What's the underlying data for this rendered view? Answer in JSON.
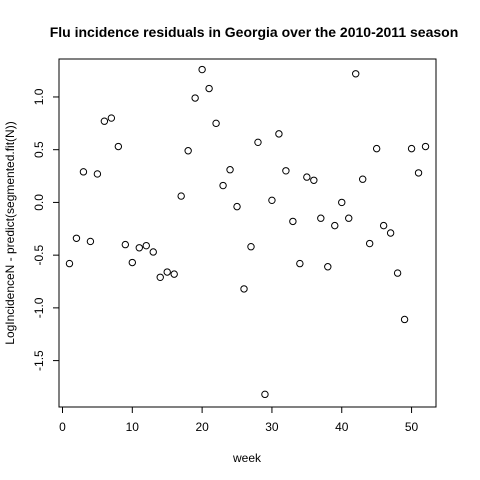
{
  "chart_data": {
    "type": "scatter",
    "title": "Flu incidence residuals in Georgia over the 2010-2011 season",
    "xlabel": "week",
    "ylabel": "LogIncidenceN - predict(segmented.fit(N))",
    "xlim": [
      -0.5,
      53.5
    ],
    "ylim": [
      -1.94,
      1.36
    ],
    "x_ticks": [
      0,
      10,
      20,
      30,
      40,
      50
    ],
    "y_ticks": [
      -1.5,
      -1.0,
      -0.5,
      0.0,
      0.5,
      1.0
    ],
    "x_tick_labels": [
      "0",
      "10",
      "20",
      "30",
      "40",
      "50"
    ],
    "y_tick_labels": [
      "-1.5",
      "-1.0",
      "-0.5",
      "0.0",
      "0.5",
      "1.0"
    ],
    "grid": false,
    "legend": "none",
    "marker": "open-circle",
    "x": [
      1,
      2,
      3,
      4,
      5,
      6,
      7,
      8,
      9,
      10,
      11,
      12,
      13,
      14,
      15,
      16,
      17,
      18,
      19,
      20,
      21,
      22,
      23,
      24,
      25,
      26,
      27,
      28,
      29,
      30,
      31,
      32,
      33,
      34,
      35,
      36,
      37,
      38,
      39,
      40,
      41,
      42,
      43,
      44,
      45,
      46,
      47,
      48,
      49,
      50,
      51,
      52
    ],
    "y": [
      -0.58,
      -0.34,
      0.29,
      -0.37,
      0.27,
      0.77,
      0.8,
      0.53,
      -0.4,
      -0.57,
      -0.43,
      -0.41,
      -0.47,
      -0.71,
      -0.66,
      -0.68,
      0.06,
      0.49,
      0.99,
      1.26,
      1.08,
      0.75,
      0.16,
      0.31,
      -0.04,
      -0.82,
      -0.42,
      0.57,
      -1.82,
      0.02,
      0.65,
      0.3,
      -0.18,
      -0.58,
      0.24,
      0.21,
      -0.15,
      -0.61,
      -0.22,
      0.0,
      -0.15,
      1.22,
      0.22,
      -0.39,
      0.51,
      -0.22,
      -0.29,
      -0.67,
      -1.11,
      0.51,
      0.28,
      0.53
    ]
  }
}
